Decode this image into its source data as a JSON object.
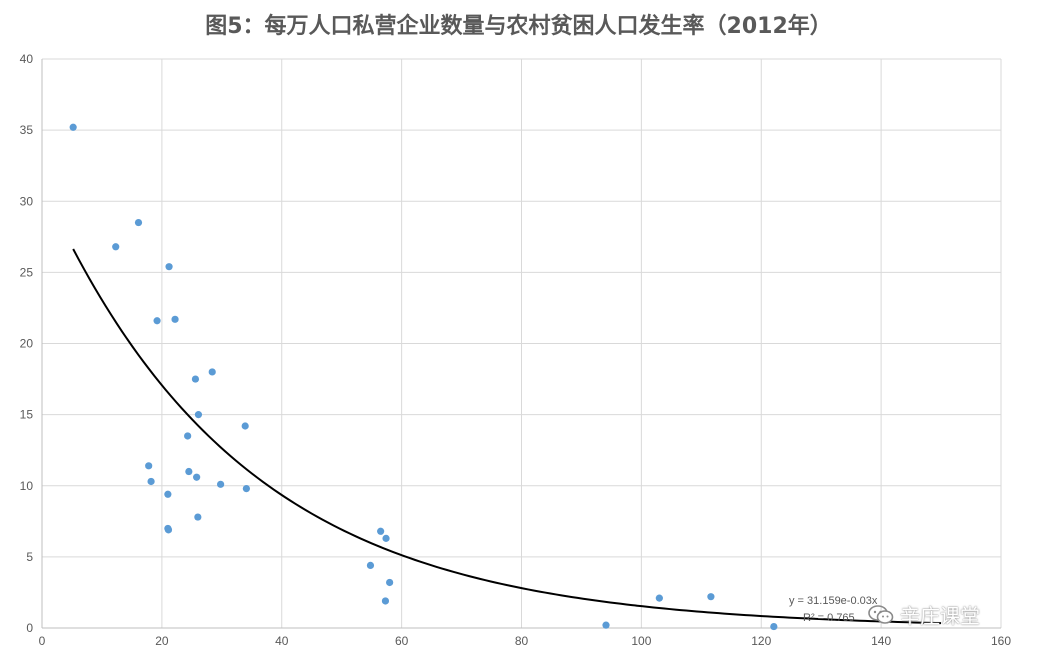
{
  "chart_data": {
    "type": "scatter",
    "title": "图5：每万人口私营企业数量与农村贫困人口发生率（2012年）",
    "xlim": [
      0,
      160
    ],
    "ylim": [
      0,
      40
    ],
    "x_ticks": [
      0,
      20,
      40,
      60,
      80,
      100,
      120,
      140,
      160
    ],
    "y_ticks": [
      0,
      5,
      10,
      15,
      20,
      25,
      30,
      35,
      40
    ],
    "grid": true,
    "legend": "none",
    "points": [
      {
        "x": 5.2,
        "y": 35.2
      },
      {
        "x": 12.3,
        "y": 26.8
      },
      {
        "x": 16.1,
        "y": 28.5
      },
      {
        "x": 21.2,
        "y": 25.4
      },
      {
        "x": 19.2,
        "y": 21.6
      },
      {
        "x": 22.2,
        "y": 21.7
      },
      {
        "x": 25.6,
        "y": 17.5
      },
      {
        "x": 28.4,
        "y": 18.0
      },
      {
        "x": 26.1,
        "y": 15.0
      },
      {
        "x": 33.9,
        "y": 14.2
      },
      {
        "x": 24.3,
        "y": 13.5
      },
      {
        "x": 17.8,
        "y": 11.4
      },
      {
        "x": 18.2,
        "y": 10.3
      },
      {
        "x": 24.5,
        "y": 11.0
      },
      {
        "x": 25.8,
        "y": 10.6
      },
      {
        "x": 29.8,
        "y": 10.1
      },
      {
        "x": 34.1,
        "y": 9.8
      },
      {
        "x": 21.0,
        "y": 9.4
      },
      {
        "x": 26.0,
        "y": 7.8
      },
      {
        "x": 21.0,
        "y": 7.0
      },
      {
        "x": 21.1,
        "y": 6.9
      },
      {
        "x": 56.5,
        "y": 6.8
      },
      {
        "x": 57.4,
        "y": 6.3
      },
      {
        "x": 54.8,
        "y": 4.4
      },
      {
        "x": 58.0,
        "y": 3.2
      },
      {
        "x": 57.3,
        "y": 1.9
      },
      {
        "x": 94.1,
        "y": 0.2
      },
      {
        "x": 103.0,
        "y": 2.1
      },
      {
        "x": 111.6,
        "y": 2.2
      },
      {
        "x": 122.1,
        "y": 0.1
      }
    ],
    "trendline": {
      "type": "exponential",
      "a": 31.159,
      "b": -0.0301,
      "x_from": 5.2,
      "x_to": 150
    },
    "colors": {
      "points": "#5b9bd5",
      "trendline": "#000000",
      "grid": "#d9d9d9"
    },
    "annotations": {
      "equation": "y = 31.159e-0.03x",
      "r_squared": "R² = 0.765"
    }
  },
  "watermark": {
    "text": "辛庄课堂",
    "icon": "wechat-icon"
  }
}
